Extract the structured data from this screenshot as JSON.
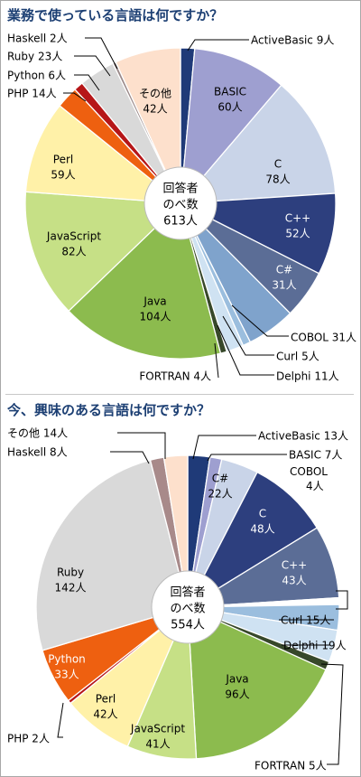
{
  "colors": {
    "title": "#1c3f73",
    "leader": "#000000",
    "slice_edge": "#ffffff"
  },
  "chart_data": [
    {
      "type": "pie",
      "title": "業務で使っている言語は何ですか？",
      "center_label": [
        "回答者",
        "のべ数",
        "613人"
      ],
      "unit": "人",
      "slices": [
        {
          "name": "ActiveBasic",
          "value": 9,
          "color": "#1f3a78"
        },
        {
          "name": "BASIC",
          "value": 60,
          "color": "#9e9fd0"
        },
        {
          "name": "C",
          "value": 78,
          "color": "#c9d4e8"
        },
        {
          "name": "C++",
          "value": 52,
          "color": "#2d3f7e"
        },
        {
          "name": "C#",
          "value": 31,
          "color": "#5b6d96"
        },
        {
          "name": "COBOL",
          "value": 31,
          "color": "#7fa3cc"
        },
        {
          "name": "Curl",
          "value": 5,
          "color": "#9bbede"
        },
        {
          "name": "Delphi",
          "value": 11,
          "color": "#cfe2f2"
        },
        {
          "name": "FORTRAN",
          "value": 4,
          "color": "#37482a"
        },
        {
          "name": "Java",
          "value": 104,
          "color": "#8cbb4e"
        },
        {
          "name": "JavaScript",
          "value": 82,
          "color": "#c6e086"
        },
        {
          "name": "Perl",
          "value": 59,
          "color": "#fff1a8"
        },
        {
          "name": "PHP",
          "value": 14,
          "color": "#ee6010"
        },
        {
          "name": "Python",
          "value": 6,
          "color": "#b61618"
        },
        {
          "name": "Ruby",
          "value": 23,
          "color": "#d9d9d9"
        },
        {
          "name": "Haskell",
          "value": 2,
          "color": "#9b8a8a"
        },
        {
          "name": "その他",
          "value": 42,
          "color": "#fde0cc"
        }
      ]
    },
    {
      "type": "pie",
      "title": "今、興味のある言語は何ですか？",
      "center_label": [
        "回答者",
        "のべ数",
        "554人"
      ],
      "unit": "人",
      "slices": [
        {
          "name": "ActiveBasic",
          "value": 13,
          "color": "#1f3a78"
        },
        {
          "name": "BASIC",
          "value": 7,
          "color": "#9e9fd0"
        },
        {
          "name": "C#",
          "value": 22,
          "color": "#c9d4e8"
        },
        {
          "name": "C",
          "value": 48,
          "color": "#2d3f7e"
        },
        {
          "name": "C++",
          "value": 43,
          "color": "#5b6d96"
        },
        {
          "name": "COBOL",
          "value": 4,
          "color": "#ffffff"
        },
        {
          "name": "Curl",
          "value": 15,
          "color": "#9bbede"
        },
        {
          "name": "Delphi",
          "value": 19,
          "color": "#cfe2f2"
        },
        {
          "name": "FORTRAN",
          "value": 5,
          "color": "#37482a"
        },
        {
          "name": "Java",
          "value": 96,
          "color": "#8cbb4e"
        },
        {
          "name": "JavaScript",
          "value": 41,
          "color": "#c6e086"
        },
        {
          "name": "Perl",
          "value": 42,
          "color": "#fff1a8"
        },
        {
          "name": "PHP",
          "value": 2,
          "color": "#b61618"
        },
        {
          "name": "Python",
          "value": 33,
          "color": "#ee6010"
        },
        {
          "name": "Ruby",
          "value": 142,
          "color": "#d9d9d9"
        },
        {
          "name": "Haskell",
          "value": 8,
          "color": "#a88a8a"
        },
        {
          "name": "その他",
          "value": 14,
          "color": "#fde0cc"
        }
      ]
    }
  ]
}
